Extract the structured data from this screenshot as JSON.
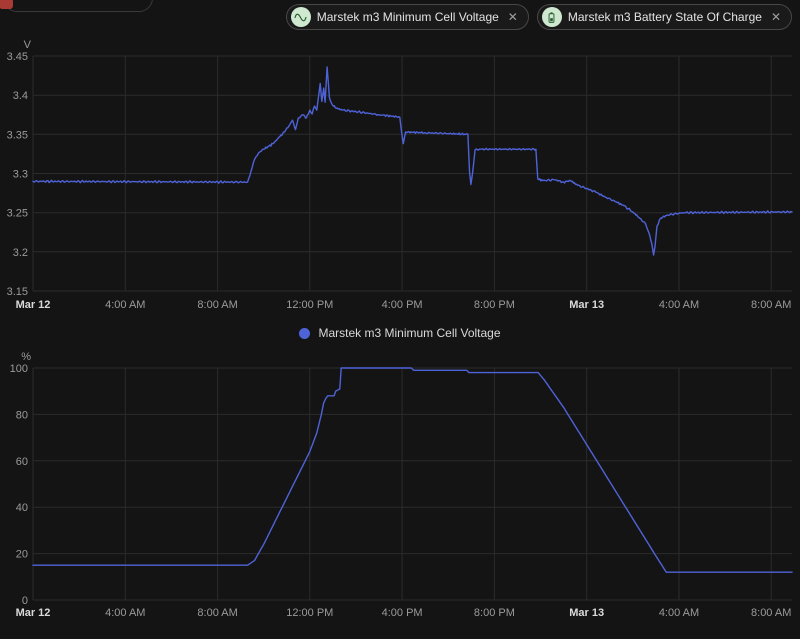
{
  "toolbar": {
    "chips": [
      {
        "label": "Marstek m3 Minimum Cell Voltage",
        "icon": "sine-wave-icon"
      },
      {
        "label": "Marstek m3 Battery State Of Charge",
        "icon": "battery-icon"
      }
    ],
    "close_glyph": "✕"
  },
  "legend": {
    "label": "Marstek m3 Minimum Cell Voltage"
  },
  "colors": {
    "line": "#4f63d8",
    "chip_icon_bg": "#cfe9d0",
    "chip_icon_fg": "#2a5d30",
    "grid": "#2b2b2b",
    "tick": "#9b9b9b",
    "tick_emph": "#dadada",
    "background": "#141415"
  },
  "chart_data": [
    {
      "type": "line",
      "name": "Marstek m3 Minimum Cell Voltage",
      "unit": "V",
      "ylabel": "V",
      "x_range": [
        0,
        32.9
      ],
      "y_range": [
        3.15,
        3.45
      ],
      "grid": true,
      "legend_position": "bottom",
      "x_ticks": [
        {
          "t": 0,
          "label": "Mar 12",
          "emph": true
        },
        {
          "t": 4,
          "label": "4:00 AM"
        },
        {
          "t": 8,
          "label": "8:00 AM"
        },
        {
          "t": 12,
          "label": "12:00 PM"
        },
        {
          "t": 16,
          "label": "4:00 PM"
        },
        {
          "t": 20,
          "label": "8:00 PM"
        },
        {
          "t": 24,
          "label": "Mar 13",
          "emph": true
        },
        {
          "t": 28,
          "label": "4:00 AM"
        },
        {
          "t": 32,
          "label": "8:00 AM"
        }
      ],
      "y_ticks": [
        {
          "v": 3.15,
          "label": "3.15"
        },
        {
          "v": 3.2,
          "label": "3.2"
        },
        {
          "v": 3.25,
          "label": "3.25"
        },
        {
          "v": 3.3,
          "label": "3.3"
        },
        {
          "v": 3.35,
          "label": "3.35"
        },
        {
          "v": 3.4,
          "label": "3.4"
        },
        {
          "v": 3.45,
          "label": "3.45"
        }
      ],
      "noise": 0.0016,
      "points": [
        [
          0,
          3.29
        ],
        [
          9.3,
          3.289
        ],
        [
          9.45,
          3.303
        ],
        [
          9.6,
          3.318
        ],
        [
          9.8,
          3.327
        ],
        [
          10.0,
          3.331
        ],
        [
          10.4,
          3.338
        ],
        [
          10.7,
          3.347
        ],
        [
          10.9,
          3.353
        ],
        [
          11.1,
          3.361
        ],
        [
          11.25,
          3.368
        ],
        [
          11.38,
          3.356
        ],
        [
          11.5,
          3.371
        ],
        [
          11.7,
          3.375
        ],
        [
          11.85,
          3.371
        ],
        [
          12.0,
          3.381
        ],
        [
          12.1,
          3.376
        ],
        [
          12.2,
          3.386
        ],
        [
          12.3,
          3.381
        ],
        [
          12.45,
          3.415
        ],
        [
          12.52,
          3.392
        ],
        [
          12.6,
          3.409
        ],
        [
          12.66,
          3.391
        ],
        [
          12.75,
          3.436
        ],
        [
          12.85,
          3.397
        ],
        [
          12.95,
          3.389
        ],
        [
          13.1,
          3.384
        ],
        [
          13.4,
          3.381
        ],
        [
          14.0,
          3.379
        ],
        [
          15.0,
          3.375
        ],
        [
          15.9,
          3.372
        ],
        [
          15.98,
          3.352
        ],
        [
          16.05,
          3.338
        ],
        [
          16.15,
          3.353
        ],
        [
          17.0,
          3.352
        ],
        [
          18.0,
          3.351
        ],
        [
          18.85,
          3.35
        ],
        [
          18.92,
          3.303
        ],
        [
          18.98,
          3.286
        ],
        [
          19.06,
          3.302
        ],
        [
          19.16,
          3.33
        ],
        [
          19.4,
          3.331
        ],
        [
          21.8,
          3.331
        ],
        [
          21.88,
          3.293
        ],
        [
          22.1,
          3.291
        ],
        [
          22.6,
          3.292
        ],
        [
          23.0,
          3.289
        ],
        [
          23.3,
          3.291
        ],
        [
          23.6,
          3.285
        ],
        [
          24.0,
          3.281
        ],
        [
          24.4,
          3.276
        ],
        [
          24.8,
          3.27
        ],
        [
          25.2,
          3.265
        ],
        [
          25.6,
          3.259
        ],
        [
          26.0,
          3.251
        ],
        [
          26.3,
          3.243
        ],
        [
          26.55,
          3.236
        ],
        [
          26.7,
          3.224
        ],
        [
          26.82,
          3.211
        ],
        [
          26.9,
          3.196
        ],
        [
          26.96,
          3.207
        ],
        [
          27.05,
          3.233
        ],
        [
          27.2,
          3.243
        ],
        [
          27.5,
          3.247
        ],
        [
          28.2,
          3.25
        ],
        [
          32.9,
          3.251
        ]
      ]
    },
    {
      "type": "line",
      "name": "Marstek m3 Battery State Of Charge",
      "unit": "%",
      "ylabel": "%",
      "x_range": [
        0,
        32.9
      ],
      "y_range": [
        0,
        100
      ],
      "grid": true,
      "x_ticks": [
        {
          "t": 0,
          "label": "Mar 12",
          "emph": true
        },
        {
          "t": 4,
          "label": "4:00 AM"
        },
        {
          "t": 8,
          "label": "8:00 AM"
        },
        {
          "t": 12,
          "label": "12:00 PM"
        },
        {
          "t": 16,
          "label": "4:00 PM"
        },
        {
          "t": 20,
          "label": "8:00 PM"
        },
        {
          "t": 24,
          "label": "Mar 13",
          "emph": true
        },
        {
          "t": 28,
          "label": "4:00 AM"
        },
        {
          "t": 32,
          "label": "8:00 AM"
        }
      ],
      "y_ticks": [
        {
          "v": 0,
          "label": "0"
        },
        {
          "v": 20,
          "label": "20"
        },
        {
          "v": 40,
          "label": "40"
        },
        {
          "v": 60,
          "label": "60"
        },
        {
          "v": 80,
          "label": "80"
        },
        {
          "v": 100,
          "label": "100"
        }
      ],
      "noise": 0,
      "points": [
        [
          0,
          15
        ],
        [
          9.3,
          15
        ],
        [
          9.6,
          17
        ],
        [
          10.0,
          24
        ],
        [
          10.5,
          34
        ],
        [
          11.0,
          44
        ],
        [
          11.5,
          54
        ],
        [
          12.0,
          64
        ],
        [
          12.3,
          72
        ],
        [
          12.5,
          80
        ],
        [
          12.6,
          85
        ],
        [
          12.7,
          87
        ],
        [
          12.78,
          88
        ],
        [
          13.05,
          88
        ],
        [
          13.12,
          90
        ],
        [
          13.3,
          91
        ],
        [
          13.36,
          100
        ],
        [
          16.4,
          100
        ],
        [
          16.5,
          99
        ],
        [
          18.8,
          99
        ],
        [
          18.9,
          98
        ],
        [
          21.9,
          98
        ],
        [
          22.15,
          95
        ],
        [
          23.0,
          83
        ],
        [
          24.0,
          67
        ],
        [
          25.0,
          51
        ],
        [
          26.0,
          35
        ],
        [
          27.0,
          19
        ],
        [
          27.45,
          12
        ],
        [
          32.9,
          12
        ]
      ]
    }
  ]
}
